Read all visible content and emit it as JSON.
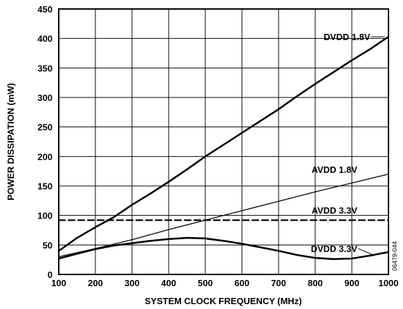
{
  "chart_data": {
    "type": "line",
    "xlabel": "SYSTEM CLOCK FREQUENCY (MHz)",
    "ylabel": "POWER DISSIPATION (mW)",
    "xlim": [
      100,
      1000
    ],
    "ylim": [
      0,
      450
    ],
    "xticks": [
      100,
      200,
      300,
      400,
      500,
      600,
      700,
      800,
      900,
      1000
    ],
    "yticks": [
      0,
      50,
      100,
      150,
      200,
      250,
      300,
      350,
      400,
      450
    ],
    "grid": true,
    "figure_id": "06479-044",
    "series": [
      {
        "name": "DVDD 1.8V",
        "style": "thick",
        "x": [
          100,
          150,
          200,
          250,
          300,
          350,
          400,
          450,
          500,
          550,
          600,
          650,
          700,
          750,
          800,
          850,
          900,
          950,
          1000
        ],
        "y": [
          40,
          62,
          80,
          97,
          118,
          137,
          157,
          178,
          200,
          220,
          240,
          260,
          280,
          302,
          323,
          343,
          363,
          382,
          403
        ]
      },
      {
        "name": "AVDD 1.8V",
        "style": "thin",
        "x": [
          100,
          200,
          300,
          400,
          500,
          600,
          700,
          800,
          900,
          1000
        ],
        "y": [
          30,
          44,
          59,
          76,
          92,
          108,
          124,
          140,
          155,
          170
        ]
      },
      {
        "name": "AVDD 3.3V",
        "style": "dashed",
        "x": [
          100,
          1000
        ],
        "y": [
          92,
          92
        ]
      },
      {
        "name": "DVDD 3.3V",
        "style": "thick",
        "x": [
          100,
          150,
          200,
          250,
          300,
          350,
          400,
          450,
          500,
          550,
          600,
          650,
          700,
          750,
          800,
          850,
          900,
          950,
          1000
        ],
        "y": [
          27,
          35,
          43,
          49,
          53,
          57,
          60,
          62,
          61,
          57,
          52,
          46,
          40,
          33,
          28,
          26,
          27,
          32,
          38
        ]
      }
    ]
  }
}
